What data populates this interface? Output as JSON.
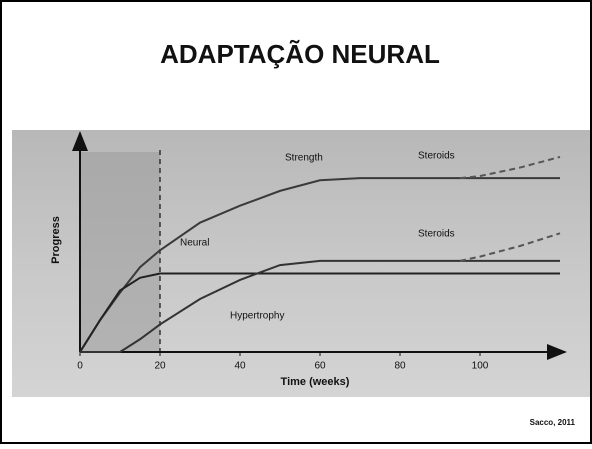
{
  "title": "ADAPTAÇÃO NEURAL",
  "credit": "Sacco, 2011",
  "chart_data": {
    "type": "line",
    "xlabel": "Time (weeks)",
    "ylabel": "Progress",
    "x": [
      0,
      5,
      10,
      15,
      20,
      30,
      40,
      50,
      60,
      70,
      80,
      90,
      95,
      100,
      110,
      120
    ],
    "xlim": [
      0,
      120
    ],
    "ylim": [
      0,
      100
    ],
    "xticks": [
      0,
      20,
      40,
      60,
      80,
      100
    ],
    "vspan": [
      0,
      20
    ],
    "vline": 20,
    "series": [
      {
        "name": "Strength",
        "color": "#3a3a3a",
        "dash": false,
        "values": [
          0,
          15,
          28,
          40,
          48,
          61,
          69,
          76,
          81,
          82,
          82,
          82,
          82,
          82,
          82,
          82
        ]
      },
      {
        "name": "Neural",
        "color": "#222222",
        "dash": false,
        "values": [
          0,
          15,
          29,
          35,
          37,
          37,
          37,
          37,
          37,
          37,
          37,
          37,
          37,
          37,
          37,
          37
        ]
      },
      {
        "name": "Hypertrophy",
        "color": "#333333",
        "dash": false,
        "values": [
          0,
          0,
          0,
          6,
          13,
          25,
          34,
          41,
          43,
          43,
          43,
          43,
          43,
          43,
          43,
          43
        ]
      },
      {
        "name": "Steroids",
        "color": "#555555",
        "dash": true,
        "values": [
          null,
          null,
          null,
          null,
          null,
          null,
          null,
          null,
          null,
          null,
          null,
          null,
          82,
          83,
          87,
          92
        ]
      },
      {
        "name": "Steroids",
        "color": "#555555",
        "dash": true,
        "values": [
          null,
          null,
          null,
          null,
          null,
          null,
          null,
          null,
          null,
          null,
          null,
          null,
          43,
          45,
          50,
          56
        ]
      }
    ]
  }
}
